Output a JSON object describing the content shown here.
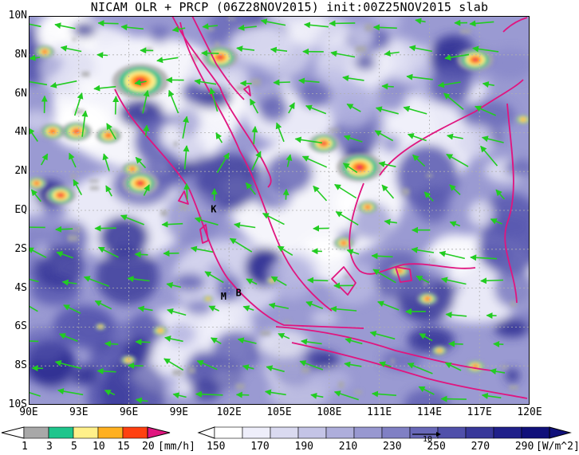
{
  "title": "NICAM OLR + PRCP (06Z28NOV2015) init:00Z25NOV2015 slab",
  "map": {
    "lat_labels": [
      "10N",
      "8N",
      "6N",
      "4N",
      "2N",
      "EQ",
      "2S",
      "4S",
      "6S",
      "8S",
      "10S"
    ],
    "lon_labels": [
      "90E",
      "93E",
      "96E",
      "99E",
      "102E",
      "105E",
      "108E",
      "111E",
      "114E",
      "117E",
      "120E"
    ],
    "extent": {
      "lon": [
        90,
        120
      ],
      "lat": [
        -10,
        10
      ]
    },
    "grid": "dotted",
    "point_labels": [
      {
        "text": "K",
        "lon": 100.9,
        "lat": -0.1
      },
      {
        "text": "M",
        "lon": 101.5,
        "lat": -4.6
      },
      {
        "text": "B",
        "lon": 102.4,
        "lat": -4.4
      }
    ],
    "colors": {
      "coastline": "#e0157f",
      "wind_vectors": "#22cc22",
      "grid": "#b0b0b0"
    }
  },
  "prcp_legend": {
    "ticks": [
      "1",
      "3",
      "5",
      "10",
      "15",
      "20"
    ],
    "unit": "[mm/h]",
    "colors": [
      "#a8a8a8",
      "#1ec58c",
      "#fff08a",
      "#ffb020",
      "#ff4010",
      "#e0157f"
    ]
  },
  "olr_legend": {
    "ticks": [
      "150",
      "170",
      "190",
      "210",
      "230",
      "250",
      "270",
      "290"
    ],
    "unit": "[W/m^2]",
    "vector_scale": "10",
    "colors": [
      "#ffffff",
      "#eeeefa",
      "#dadaf0",
      "#c4c4e6",
      "#aeaedb",
      "#9898d0",
      "#8080c4",
      "#6868b8",
      "#5050aa",
      "#38389a",
      "#20208a",
      "#10107a"
    ]
  }
}
